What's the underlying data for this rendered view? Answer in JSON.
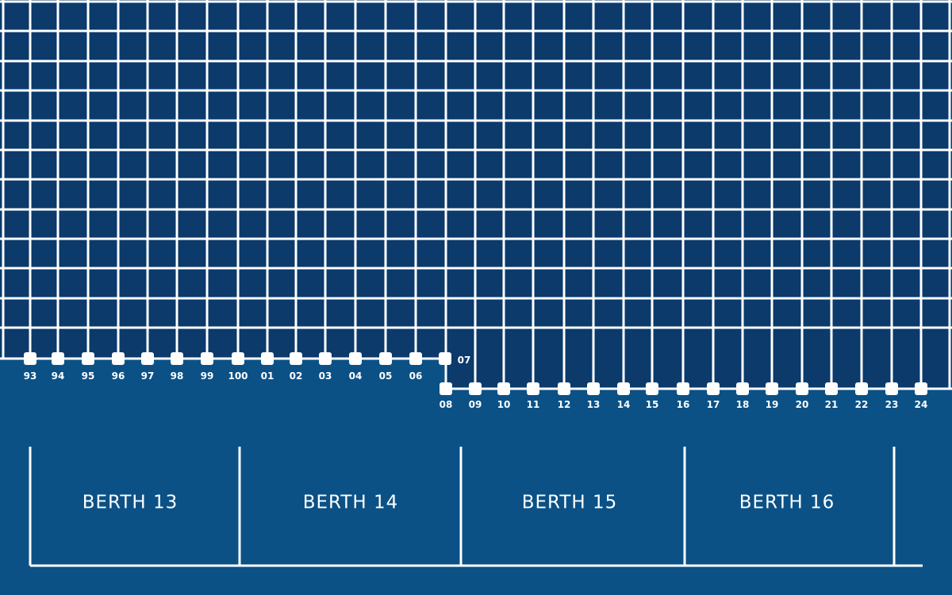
{
  "colors": {
    "water": "#0b3a6b",
    "quay": "#0b5186",
    "grid_lines": "#ffffff",
    "bollards": "#ffffff"
  },
  "upper_posts": [
    "93",
    "94",
    "95",
    "96",
    "97",
    "98",
    "99",
    "100",
    "01",
    "02",
    "03",
    "04",
    "05",
    "06",
    "07"
  ],
  "lower_posts": [
    "08",
    "09",
    "10",
    "11",
    "12",
    "13",
    "14",
    "15",
    "16",
    "17",
    "18",
    "19",
    "20",
    "21",
    "22",
    "23",
    "24"
  ],
  "berths": [
    {
      "label": "BERTH 13"
    },
    {
      "label": "BERTH 14"
    },
    {
      "label": "BERTH 15"
    },
    {
      "label": "BERTH 16"
    }
  ]
}
